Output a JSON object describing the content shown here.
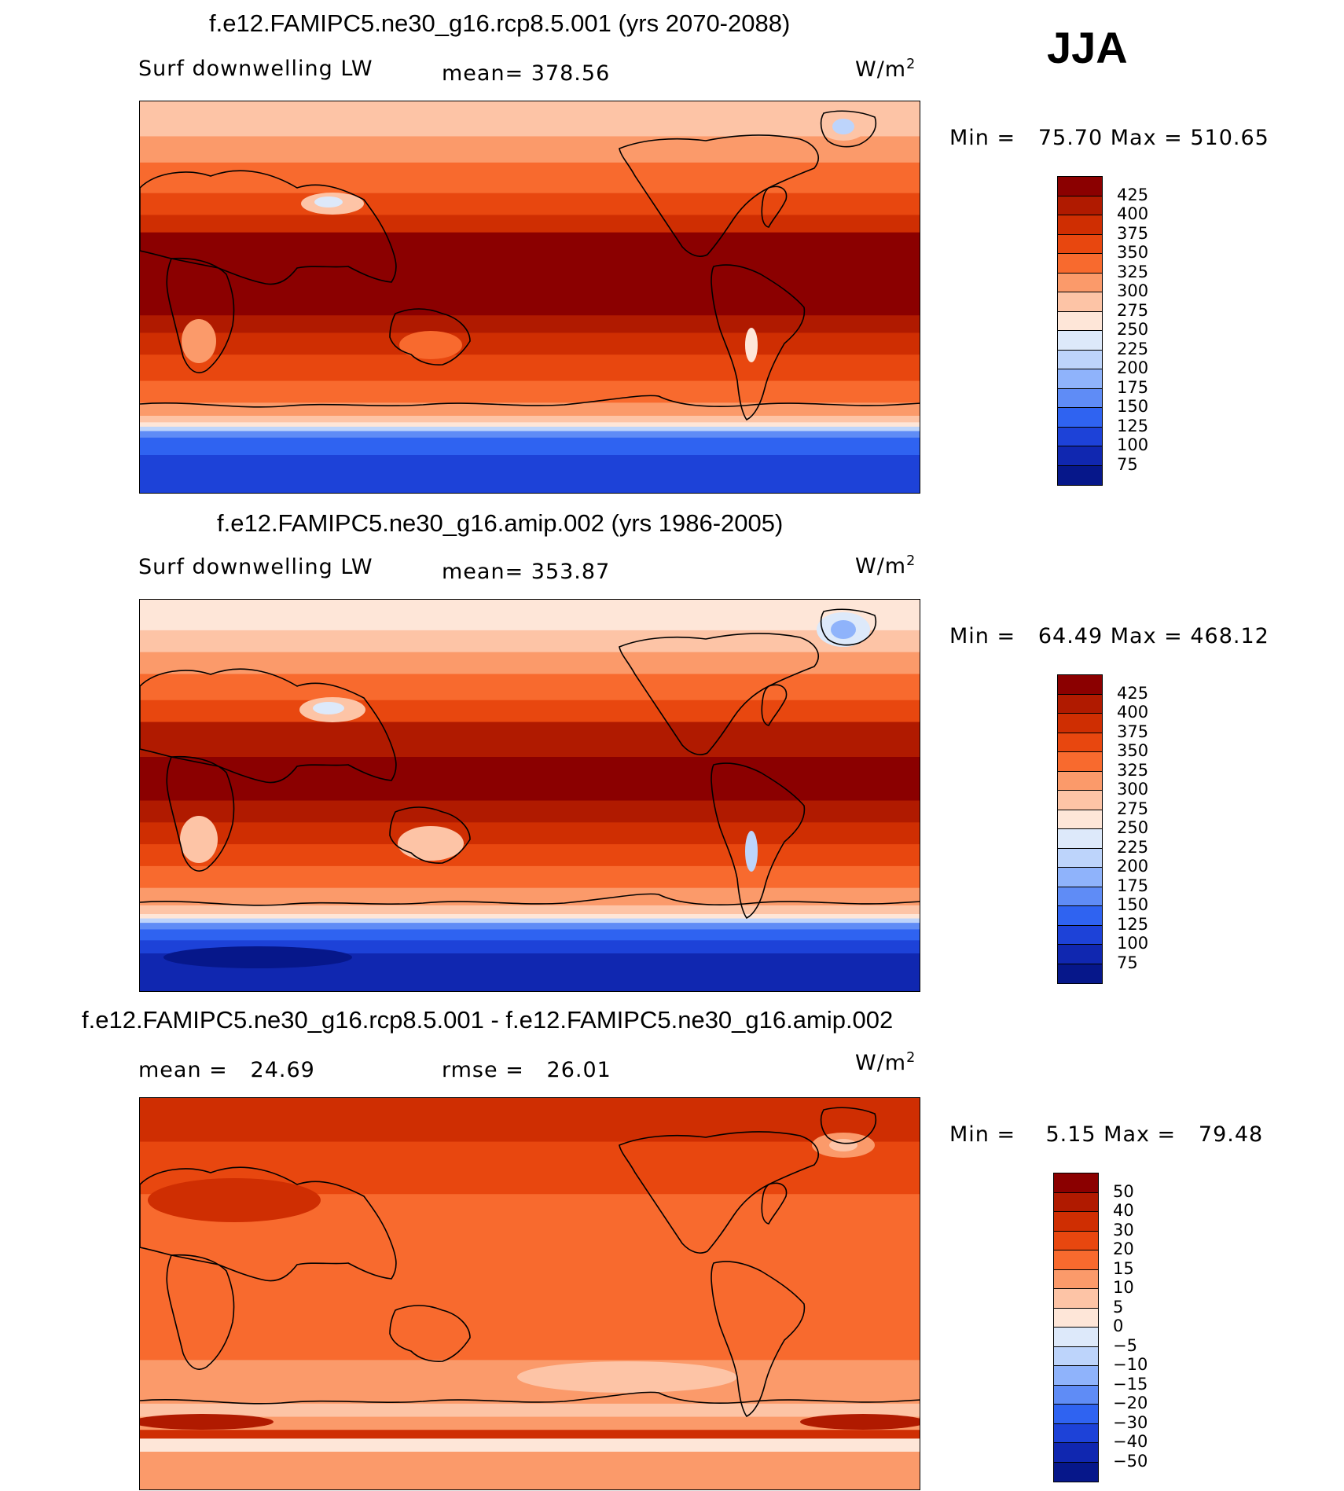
{
  "season": "JJA",
  "panels": [
    {
      "title": "f.e12.FAMIPC5.ne30_g16.rcp8.5.001 (yrs 2070-2088)",
      "left_label": "Surf downwelling LW",
      "center_label": "mean= 378.56",
      "units": "W/m",
      "units_exp": "2",
      "minmax": "Min =   75.70 Max = 510.65",
      "colorbar_ticks": [
        "425",
        "400",
        "375",
        "350",
        "325",
        "300",
        "275",
        "250",
        "225",
        "200",
        "175",
        "150",
        "125",
        "100",
        "75"
      ],
      "colorbar_colors": [
        "#8b0000",
        "#b01a00",
        "#cf2e02",
        "#e8470f",
        "#f86a2e",
        "#fb9a6a",
        "#fdc4a6",
        "#fee6d8",
        "#dde9fa",
        "#bdd4fb",
        "#8fb3fb",
        "#5f8cf6",
        "#2f63f1",
        "#1d42d8",
        "#1027b0",
        "#06178a"
      ],
      "map_style": "future"
    },
    {
      "title": "f.e12.FAMIPC5.ne30_g16.amip.002 (yrs 1986-2005)",
      "left_label": "Surf downwelling LW",
      "center_label": "mean= 353.87",
      "units": "W/m",
      "units_exp": "2",
      "minmax": "Min =   64.49 Max = 468.12",
      "colorbar_ticks": [
        "425",
        "400",
        "375",
        "350",
        "325",
        "300",
        "275",
        "250",
        "225",
        "200",
        "175",
        "150",
        "125",
        "100",
        "75"
      ],
      "colorbar_colors": [
        "#8b0000",
        "#b01a00",
        "#cf2e02",
        "#e8470f",
        "#f86a2e",
        "#fb9a6a",
        "#fdc4a6",
        "#fee6d8",
        "#dde9fa",
        "#bdd4fb",
        "#8fb3fb",
        "#5f8cf6",
        "#2f63f1",
        "#1d42d8",
        "#1027b0",
        "#06178a"
      ],
      "map_style": "present"
    },
    {
      "title": "f.e12.FAMIPC5.ne30_g16.rcp8.5.001 - f.e12.FAMIPC5.ne30_g16.amip.002",
      "left_label": "mean =   24.69",
      "center_label": "rmse =   26.01",
      "units": "W/m",
      "units_exp": "2",
      "minmax": "Min =    5.15 Max =   79.48",
      "colorbar_ticks": [
        "50",
        "40",
        "30",
        "20",
        "15",
        "10",
        "5",
        "0",
        "−5",
        "−10",
        "−15",
        "−20",
        "−30",
        "−40",
        "−50"
      ],
      "colorbar_colors": [
        "#8b0000",
        "#b01a00",
        "#cf2e02",
        "#e8470f",
        "#f86a2e",
        "#fb9a6a",
        "#fdc4a6",
        "#fee6d8",
        "#dde9fa",
        "#bdd4fb",
        "#8fb3fb",
        "#5f8cf6",
        "#2f63f1",
        "#1d42d8",
        "#1027b0",
        "#06178a"
      ],
      "map_style": "diff"
    }
  ],
  "chart_data": [
    {
      "type": "heatmap",
      "title": "f.e12.FAMIPC5.ne30_g16.rcp8.5.001 (yrs 2070-2088)",
      "variable": "Surf downwelling LW",
      "units": "W/m2",
      "mean": 378.56,
      "min": 75.7,
      "max": 510.65,
      "contour_levels": [
        75,
        100,
        125,
        150,
        175,
        200,
        225,
        250,
        275,
        300,
        325,
        350,
        375,
        400,
        425
      ],
      "season": "JJA"
    },
    {
      "type": "heatmap",
      "title": "f.e12.FAMIPC5.ne30_g16.amip.002 (yrs 1986-2005)",
      "variable": "Surf downwelling LW",
      "units": "W/m2",
      "mean": 353.87,
      "min": 64.49,
      "max": 468.12,
      "contour_levels": [
        75,
        100,
        125,
        150,
        175,
        200,
        225,
        250,
        275,
        300,
        325,
        350,
        375,
        400,
        425
      ],
      "season": "JJA"
    },
    {
      "type": "heatmap",
      "title": "f.e12.FAMIPC5.ne30_g16.rcp8.5.001 - f.e12.FAMIPC5.ne30_g16.amip.002",
      "units": "W/m2",
      "mean": 24.69,
      "rmse": 26.01,
      "min": 5.15,
      "max": 79.48,
      "contour_levels": [
        -50,
        -40,
        -30,
        -20,
        -15,
        -10,
        -5,
        0,
        5,
        10,
        15,
        20,
        30,
        40,
        50
      ],
      "season": "JJA"
    }
  ]
}
